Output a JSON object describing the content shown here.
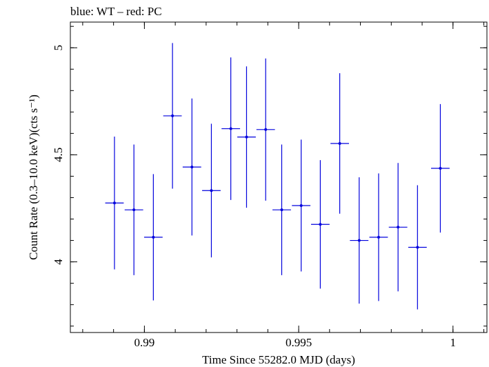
{
  "chart_data": {
    "type": "scatter",
    "title": "blue: WT – red: PC",
    "xlabel": "Time Since 55282.0 MJD (days)",
    "ylabel": "Count Rate (0.3–10.0 keV)(cts s⁻¹)",
    "xlim": [
      0.9876,
      1.0011
    ],
    "ylim": [
      3.67,
      5.12
    ],
    "x_ticks": [
      {
        "value": 0.99,
        "label": "0.99"
      },
      {
        "value": 0.995,
        "label": "0.995"
      },
      {
        "value": 1.0,
        "label": "1"
      }
    ],
    "y_ticks": [
      {
        "value": 4.0,
        "label": "4"
      },
      {
        "value": 4.5,
        "label": "4.5"
      },
      {
        "value": 5.0,
        "label": "5"
      }
    ],
    "x_minor_step": 0.001,
    "y_minor_step": 0.1,
    "series": [
      {
        "color": "#0000dd",
        "points": [
          {
            "x": 0.98903,
            "xerr": 0.0003,
            "y": 4.275,
            "yerr": 0.31
          },
          {
            "x": 0.98966,
            "xerr": 0.0003,
            "y": 4.243,
            "yerr": 0.305
          },
          {
            "x": 0.99029,
            "xerr": 0.0003,
            "y": 4.115,
            "yerr": 0.295
          },
          {
            "x": 0.99091,
            "xerr": 0.0003,
            "y": 4.682,
            "yerr": 0.34
          },
          {
            "x": 0.99154,
            "xerr": 0.0003,
            "y": 4.443,
            "yerr": 0.32
          },
          {
            "x": 0.99217,
            "xerr": 0.0003,
            "y": 4.333,
            "yerr": 0.312
          },
          {
            "x": 0.9928,
            "xerr": 0.0003,
            "y": 4.622,
            "yerr": 0.333
          },
          {
            "x": 0.99331,
            "xerr": 0.0003,
            "y": 4.583,
            "yerr": 0.33
          },
          {
            "x": 0.99393,
            "xerr": 0.0003,
            "y": 4.618,
            "yerr": 0.332
          },
          {
            "x": 0.99445,
            "xerr": 0.0003,
            "y": 4.243,
            "yerr": 0.305
          },
          {
            "x": 0.99508,
            "xerr": 0.0003,
            "y": 4.263,
            "yerr": 0.308
          },
          {
            "x": 0.9957,
            "xerr": 0.0003,
            "y": 4.175,
            "yerr": 0.3
          },
          {
            "x": 0.99633,
            "xerr": 0.0003,
            "y": 4.553,
            "yerr": 0.328
          },
          {
            "x": 0.99696,
            "xerr": 0.0003,
            "y": 4.1,
            "yerr": 0.295
          },
          {
            "x": 0.99759,
            "xerr": 0.0003,
            "y": 4.115,
            "yerr": 0.298
          },
          {
            "x": 0.99822,
            "xerr": 0.0003,
            "y": 4.162,
            "yerr": 0.3
          },
          {
            "x": 0.99885,
            "xerr": 0.0003,
            "y": 4.068,
            "yerr": 0.29
          },
          {
            "x": 0.99959,
            "xerr": 0.0003,
            "y": 4.437,
            "yerr": 0.3
          }
        ]
      }
    ],
    "grid": false,
    "legend": "none"
  }
}
